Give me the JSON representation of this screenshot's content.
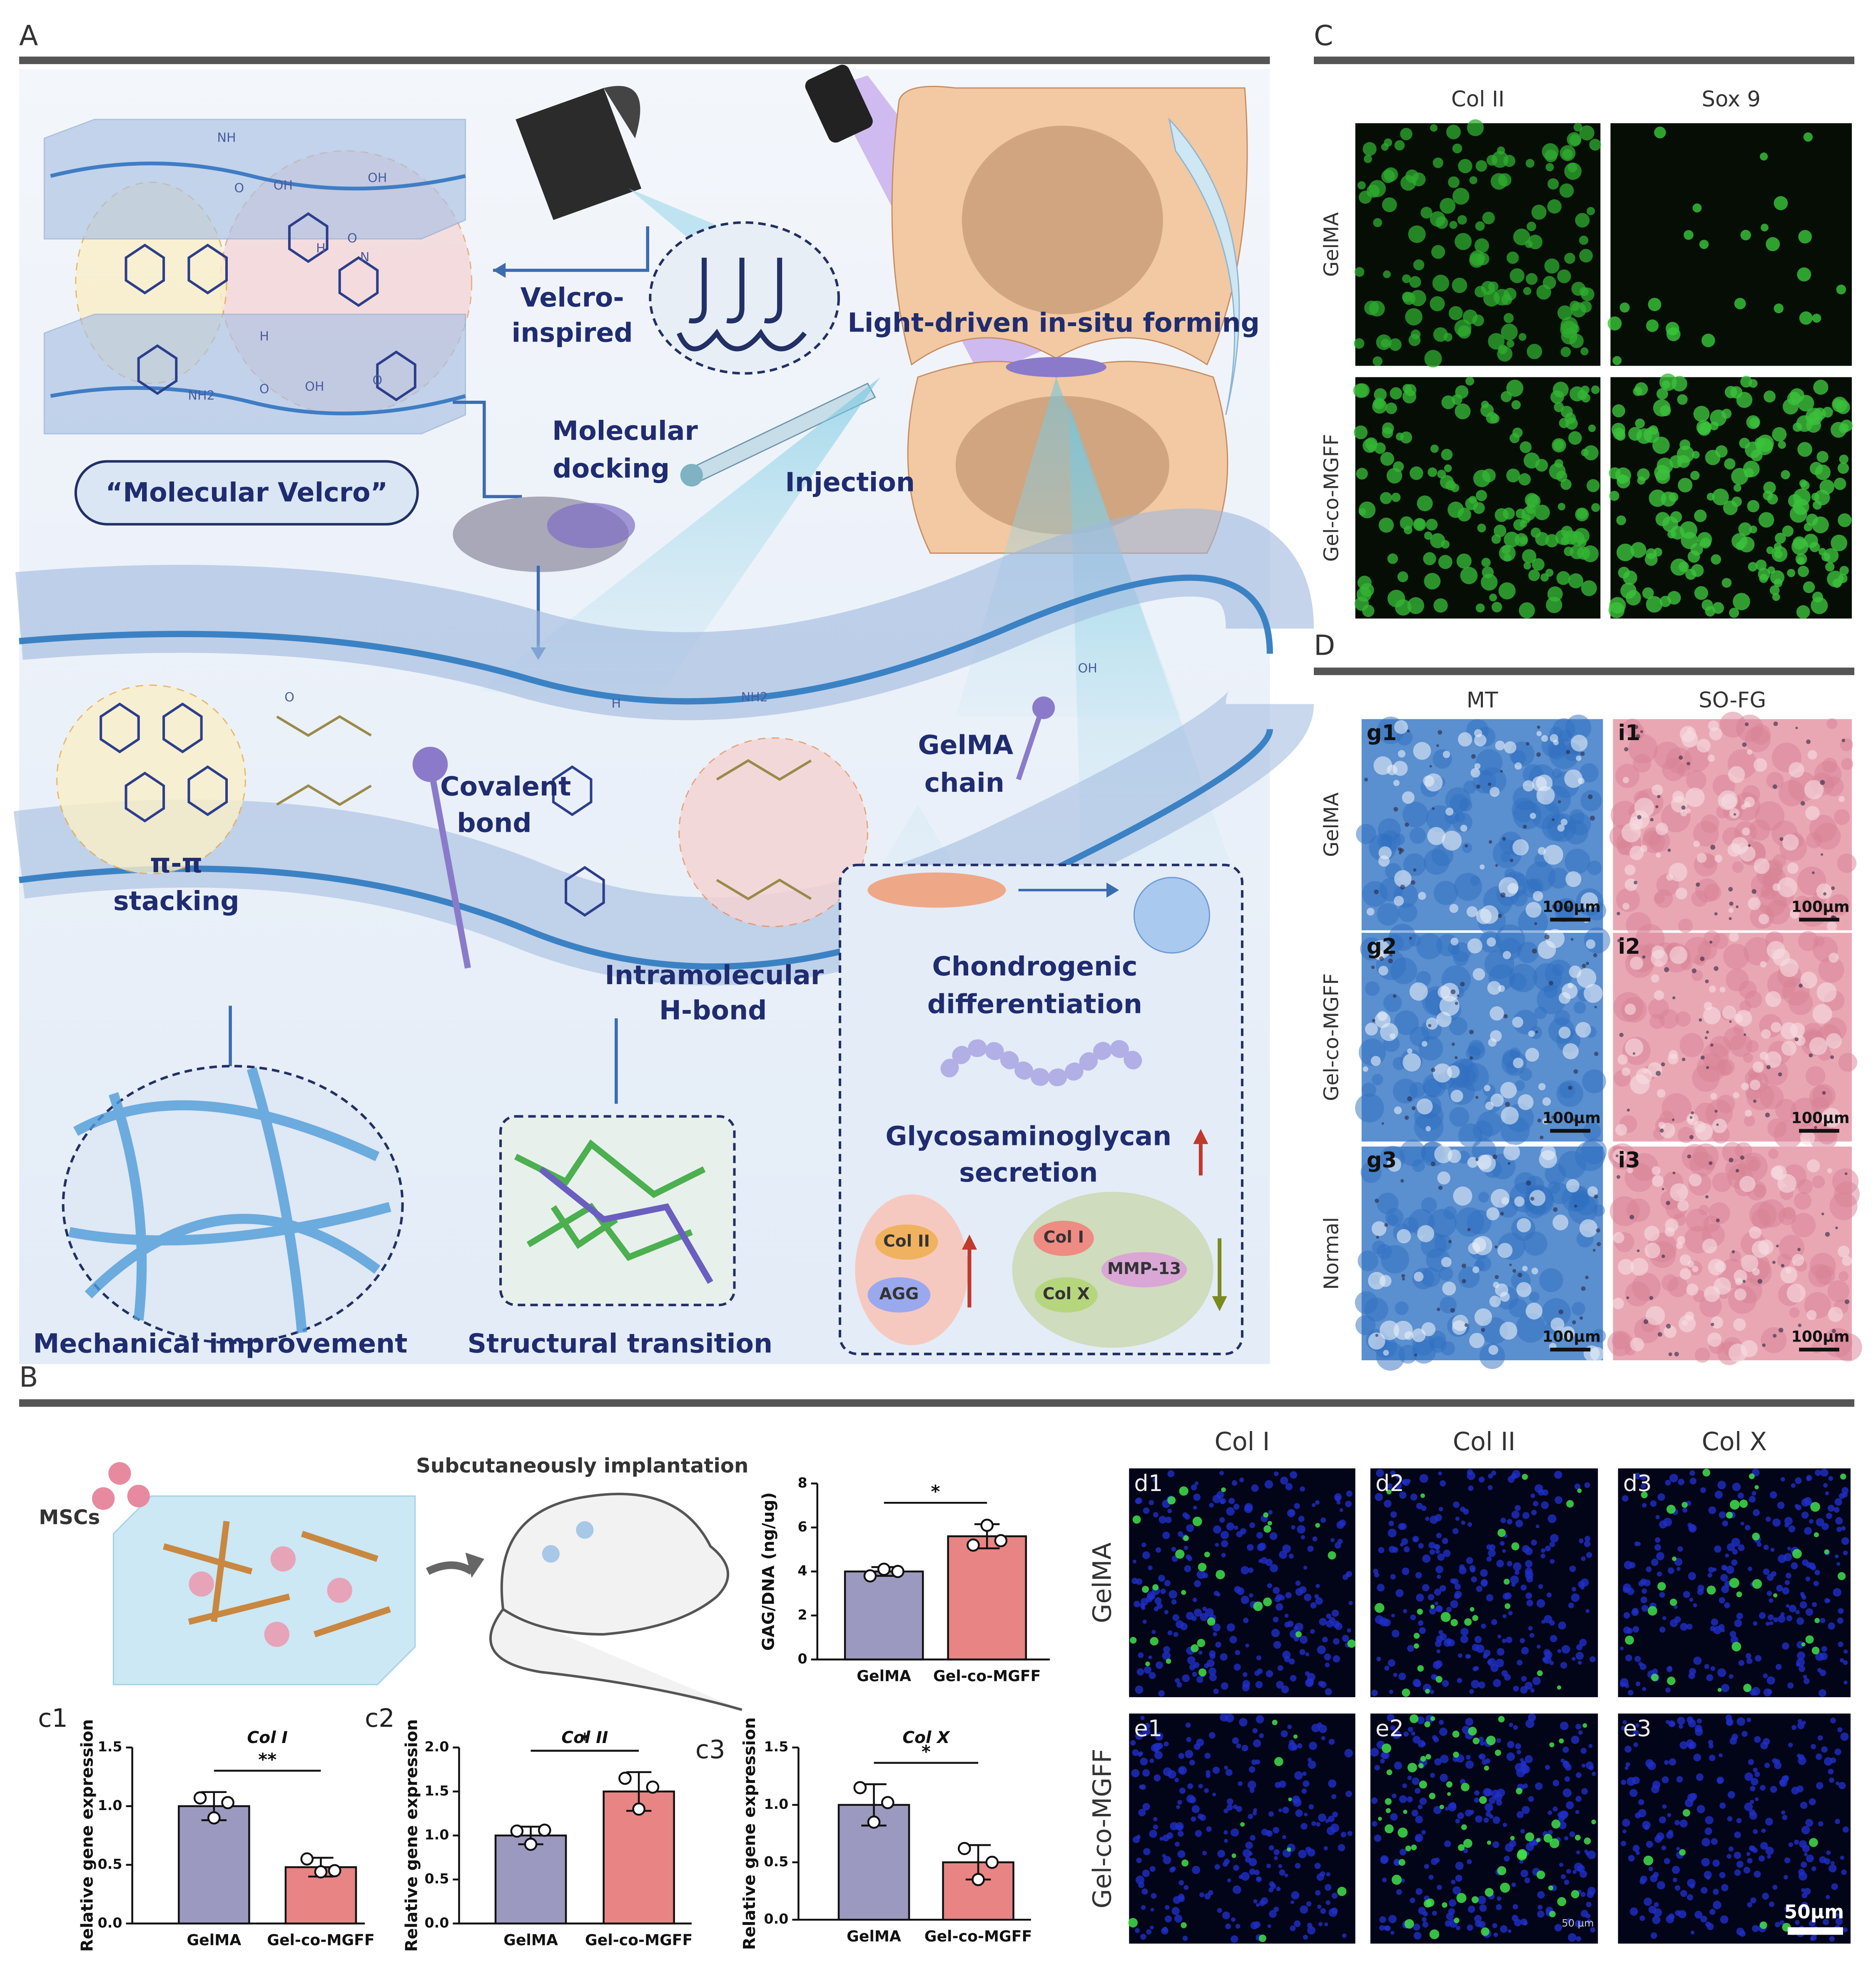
{
  "panel_letters": {
    "a": "A",
    "b": "B",
    "c": "C",
    "d": "D"
  },
  "panel_a": {
    "velcro": [
      "Velcro-",
      "inspired"
    ],
    "molecular_velcro": "“Molecular Velcro”",
    "docking": [
      "Molecular",
      "docking"
    ],
    "injection": "Injection",
    "light": "Light-driven in-situ forming",
    "stacking": [
      "π-π",
      "stacking"
    ],
    "covalent": [
      "Covalent",
      "bond"
    ],
    "chain": [
      "GelMA",
      "chain"
    ],
    "hbond": [
      "Intramolecular",
      "H-bond"
    ],
    "chondro": [
      "Chondrogenic",
      "differentiation"
    ],
    "gag": [
      "Glycosaminoglycan",
      "secretion"
    ],
    "markers_up": [
      "Col II",
      "AGG"
    ],
    "markers_down": [
      "Col I",
      "MMP-13",
      "Col X"
    ],
    "mechanical": "Mechanical improvement",
    "structural": "Structural transition",
    "atoms": [
      "NH",
      "O",
      "OH",
      "OH",
      "O",
      "H",
      "N",
      "NH2",
      "O",
      "OH",
      "O",
      "H",
      "O",
      "H",
      "NH2",
      "OH"
    ]
  },
  "panel_b": {
    "cells": "MSCs",
    "implant": "Subcutaneously implantation",
    "columns": [
      "Col I",
      "Col II",
      "Col X"
    ],
    "rows": [
      "GelMA",
      "Gel-co-MGFF"
    ],
    "tiles": [
      "d1",
      "d2",
      "d3",
      "e1",
      "e2",
      "e3"
    ],
    "scale": "50μm",
    "scale_small": "50 μm"
  },
  "panel_c": {
    "columns": [
      "Col II",
      "Sox 9"
    ],
    "rows": [
      "GelMA",
      "Gel-co-MGFF"
    ]
  },
  "panel_d": {
    "columns": [
      "MT",
      "SO-FG"
    ],
    "rows": [
      "GelMA",
      "Gel-co-MGFF",
      "Normal"
    ],
    "tiles": [
      "g1",
      "i1",
      "g2",
      "i2",
      "g3",
      "i3"
    ],
    "scale": "100μm"
  },
  "chart_data": [
    {
      "type": "bar",
      "y_label": "GAG/DNA (ng/ug)",
      "categories": [
        "GelMA",
        "Gel-co-MGFF"
      ],
      "values": [
        4.0,
        5.6
      ],
      "errors": [
        0.2,
        0.55
      ],
      "points": [
        [
          3.8,
          4.1,
          4.0
        ],
        [
          5.2,
          6.1,
          5.4
        ]
      ],
      "colors": [
        "#9b99bf",
        "#e88484"
      ],
      "ylim": [
        0,
        8
      ],
      "yticks": [
        0,
        2,
        4,
        6,
        8
      ],
      "significance": "*"
    },
    {
      "type": "bar",
      "panel_label": "c1",
      "title": "Col I",
      "y_label": "Relative gene expression",
      "categories": [
        "GelMA",
        "Gel-co-MGFF"
      ],
      "values": [
        1.0,
        0.48
      ],
      "errors": [
        0.12,
        0.08
      ],
      "points": [
        [
          1.07,
          0.9,
          1.03
        ],
        [
          0.55,
          0.44,
          0.45
        ]
      ],
      "colors": [
        "#9b99bf",
        "#e88484"
      ],
      "ylim": [
        0,
        1.5
      ],
      "yticks": [
        {
          "value": 0,
          "label": "0.0"
        },
        {
          "value": 0.5,
          "label": "0.5"
        },
        {
          "value": 1,
          "label": "1.0"
        },
        {
          "value": 1.5,
          "label": "1.5"
        }
      ],
      "significance": "**"
    },
    {
      "type": "bar",
      "panel_label": "c2",
      "title": "Col II",
      "y_label": "Relative gene expression",
      "categories": [
        "GelMA",
        "Gel-co-MGFF"
      ],
      "values": [
        1.0,
        1.5
      ],
      "errors": [
        0.1,
        0.22
      ],
      "points": [
        [
          1.05,
          0.9,
          1.06
        ],
        [
          1.65,
          1.3,
          1.55
        ]
      ],
      "colors": [
        "#9b99bf",
        "#e88484"
      ],
      "ylim": [
        0,
        2
      ],
      "yticks": [
        {
          "value": 0,
          "label": "0.0"
        },
        {
          "value": 0.5,
          "label": "0.5"
        },
        {
          "value": 1,
          "label": "1.0"
        },
        {
          "value": 1.5,
          "label": "1.5"
        },
        {
          "value": 2,
          "label": "2.0"
        }
      ],
      "significance": "*"
    },
    {
      "type": "bar",
      "panel_label": "c3",
      "title": "Col X",
      "y_label": "Relative gene expression",
      "categories": [
        "GelMA",
        "Gel-co-MGFF"
      ],
      "values": [
        1.0,
        0.5
      ],
      "errors": [
        0.18,
        0.15
      ],
      "points": [
        [
          1.15,
          0.85,
          1.02
        ],
        [
          0.62,
          0.35,
          0.5
        ]
      ],
      "colors": [
        "#9b99bf",
        "#e88484"
      ],
      "ylim": [
        0,
        1.5
      ],
      "yticks": [
        {
          "value": 0,
          "label": "0.0"
        },
        {
          "value": 0.5,
          "label": "0.5"
        },
        {
          "value": 1,
          "label": "1.0"
        },
        {
          "value": 1.5,
          "label": "1.5"
        }
      ],
      "significance": "*"
    }
  ]
}
